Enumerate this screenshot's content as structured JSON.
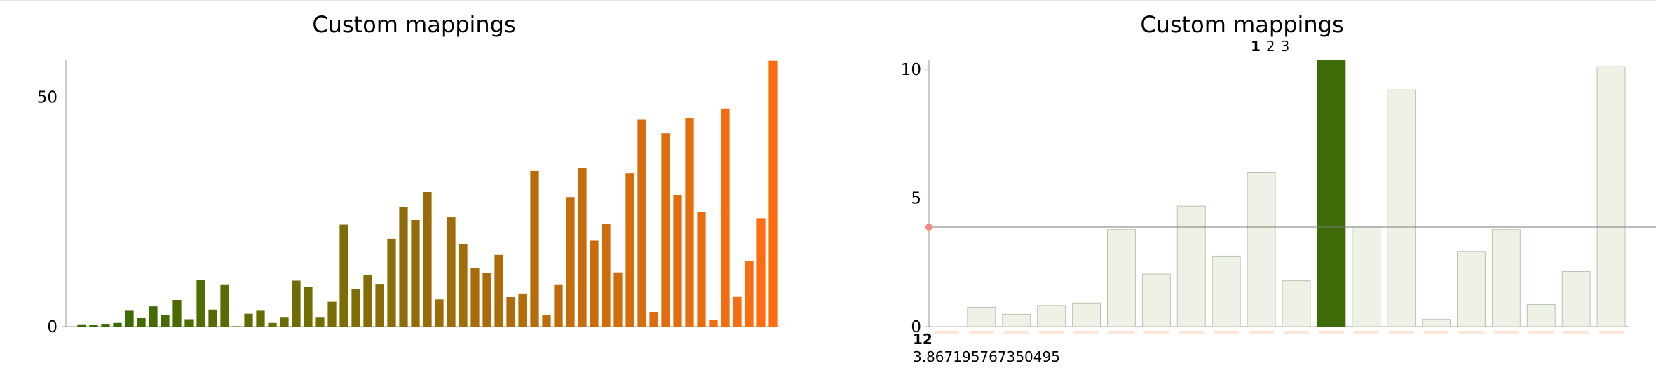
{
  "charts": [
    {
      "title": "Custom mappings",
      "chart_data": {
        "type": "bar",
        "title": "Custom mappings",
        "xlabel": "",
        "ylabel": "",
        "ylim": [
          0,
          58
        ],
        "yticks": [
          0,
          50
        ],
        "color_start": "#2e6b00",
        "color_end": "#ff6d10",
        "values": [
          0.5,
          0.3,
          0.6,
          0.8,
          3.6,
          1.9,
          4.4,
          2.6,
          5.8,
          1.6,
          10.2,
          3.7,
          9.2,
          0.1,
          2.8,
          3.6,
          0.8,
          2.1,
          10.0,
          8.6,
          2.1,
          5.4,
          22.2,
          8.2,
          11.2,
          9.3,
          19.1,
          26.1,
          23.2,
          29.3,
          5.9,
          23.8,
          18.0,
          12.8,
          11.6,
          15.6,
          6.5,
          7.2,
          33.9,
          2.5,
          9.2,
          28.2,
          34.6,
          18.7,
          22.4,
          11.8,
          33.4,
          45.1,
          3.2,
          42.1,
          28.7,
          45.4,
          24.9,
          1.4,
          47.5,
          6.6,
          14.2,
          23.6,
          57.9
        ]
      }
    },
    {
      "title": "Custom mappings",
      "pagination": {
        "pages": [
          "1",
          "2",
          "3"
        ],
        "active": "1"
      },
      "hover": {
        "index_label": "12",
        "value_label": "3.867195767350495"
      },
      "chart_data": {
        "type": "bar",
        "title": "Custom mappings",
        "xlabel": "",
        "ylabel": "",
        "ylim": [
          0,
          10.35
        ],
        "yticks": [
          0,
          5,
          10
        ],
        "bar_color": "#edf1e6",
        "highlight_color": "#3c6b08",
        "highlight_index": 11,
        "crosshair_value": 3.867195767350495,
        "values": [
          0.0,
          0.75,
          0.48,
          0.82,
          0.92,
          3.78,
          2.04,
          4.68,
          2.74,
          5.98,
          1.78,
          10.35,
          3.87,
          9.2,
          0.28,
          2.92,
          3.78,
          0.86,
          2.14,
          10.1
        ]
      }
    }
  ]
}
